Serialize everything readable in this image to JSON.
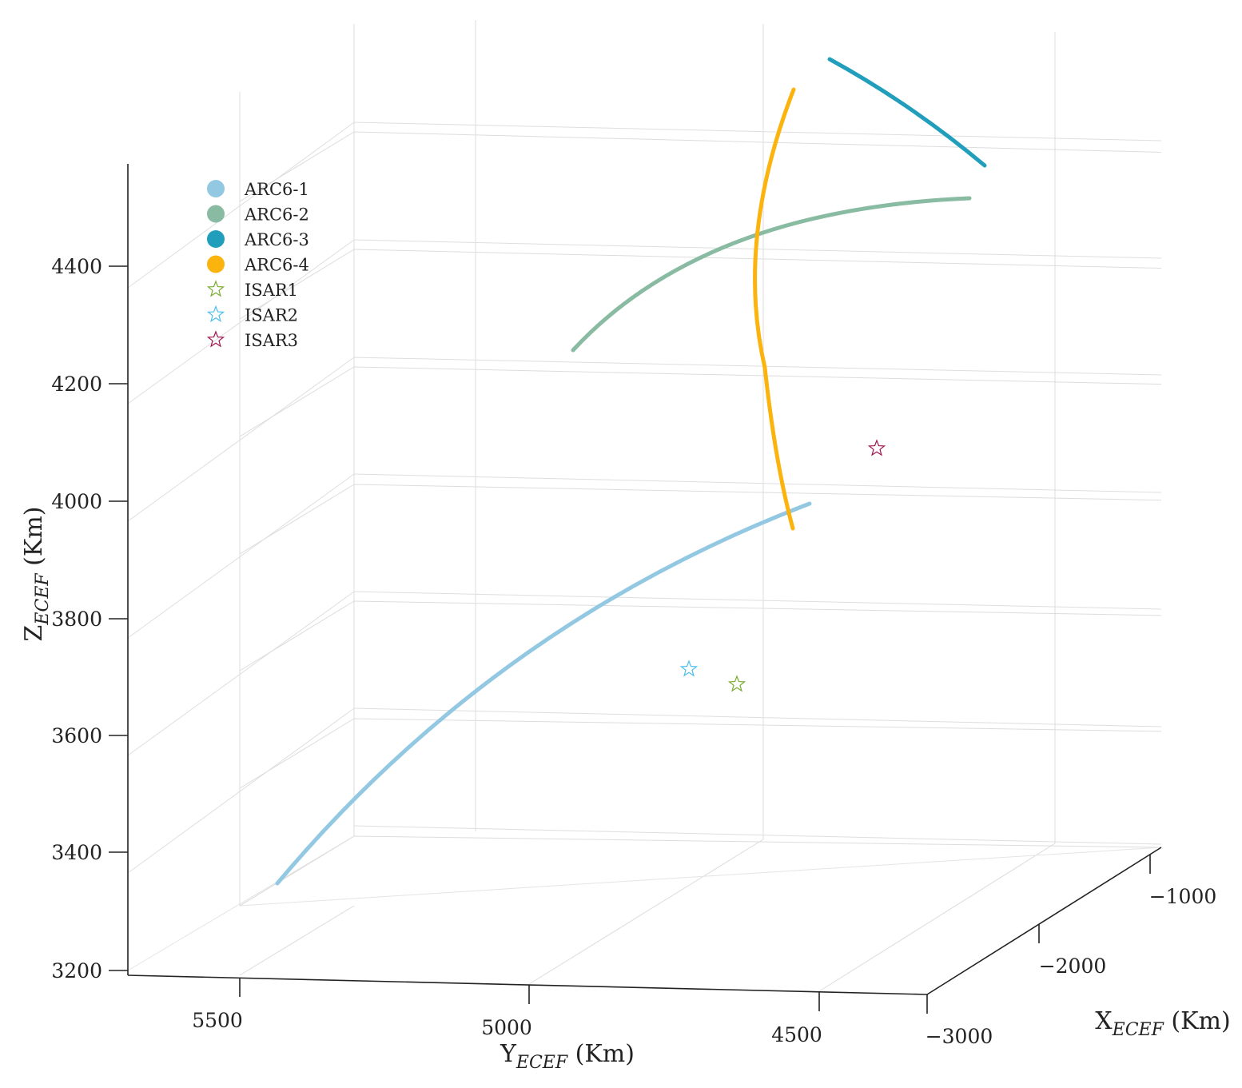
{
  "chart_data": {
    "type": "line3d",
    "title": "",
    "x_axis": {
      "label_main": "X",
      "label_sub": "ECEF",
      "label_unit": " (Km)",
      "ticks": [
        -1000,
        -2000,
        -3000
      ],
      "tick_labels": [
        "−1000",
        "−2000",
        "−3000"
      ]
    },
    "y_axis": {
      "label_main": "Y",
      "label_sub": "ECEF",
      "label_unit": " (Km)",
      "ticks": [
        5500,
        5000,
        4500
      ],
      "tick_labels": [
        "5500",
        "5000",
        "4500"
      ]
    },
    "z_axis": {
      "label_main": "Z",
      "label_sub": "ECEF",
      "label_unit": " (Km)",
      "ticks": [
        3200,
        3400,
        3600,
        3800,
        4000,
        4200,
        4400
      ],
      "tick_labels": [
        "3200",
        "3400",
        "3600",
        "3800",
        "4000",
        "4200",
        "4400"
      ]
    },
    "grid": true,
    "legend_position": "top-left",
    "series": [
      {
        "name": "ARC6-1",
        "kind": "line",
        "color": "#93c8e3"
      },
      {
        "name": "ARC6-2",
        "kind": "line",
        "color": "#88bba1"
      },
      {
        "name": "ARC6-3",
        "kind": "line",
        "color": "#229ebd"
      },
      {
        "name": "ARC6-4",
        "kind": "line",
        "color": "#fbb30d"
      },
      {
        "name": "ISAR1",
        "kind": "marker",
        "marker": "star",
        "color": "#77ac30"
      },
      {
        "name": "ISAR2",
        "kind": "marker",
        "marker": "star",
        "color": "#4dbeee"
      },
      {
        "name": "ISAR3",
        "kind": "marker",
        "marker": "star",
        "color": "#a2144e"
      }
    ]
  }
}
